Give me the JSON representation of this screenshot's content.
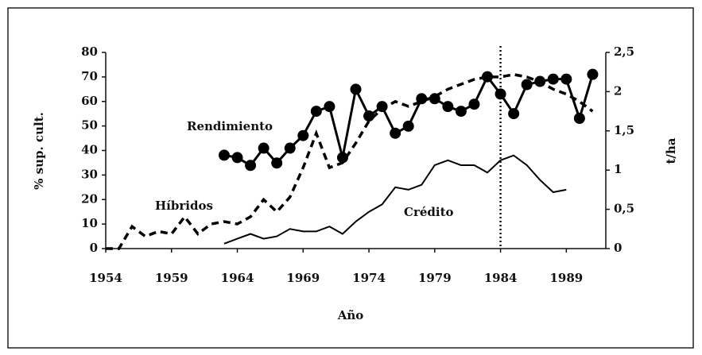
{
  "chart_data": {
    "type": "line",
    "xlabel": "Año",
    "ylabel": "% sup. cult.",
    "y2label": "t/ha",
    "xlim": [
      1954,
      1992
    ],
    "xticks": [
      1954,
      1959,
      1964,
      1969,
      1974,
      1979,
      1984,
      1989
    ],
    "ylim": [
      0,
      80
    ],
    "yticks": [
      0,
      10,
      20,
      30,
      40,
      50,
      60,
      70,
      80
    ],
    "y2lim": [
      0,
      2.5
    ],
    "y2ticks": [
      0,
      {
        "value": 0.5,
        "label": "0,5"
      },
      1,
      {
        "value": 1.5,
        "label": "1,5"
      },
      2,
      {
        "value": 2.5,
        "label": "2,5"
      }
    ],
    "vline": 1984,
    "series": [
      {
        "name": "Híbridos",
        "color": "#000000",
        "style": "dashed",
        "x": [
          1954,
          1955,
          1956,
          1957,
          1958,
          1959,
          1960,
          1961,
          1962,
          1963,
          1964,
          1965,
          1966,
          1967,
          1968,
          1969,
          1970,
          1971,
          1972,
          1973,
          1974,
          1975,
          1976,
          1977,
          1978,
          1979,
          1980,
          1981,
          1982,
          1983,
          1984,
          1985,
          1986,
          1987,
          1988,
          1989,
          1990,
          1991
        ],
        "values": [
          0,
          0,
          9,
          5,
          7,
          6,
          13,
          6,
          10,
          11,
          10,
          13,
          20,
          15,
          21,
          33,
          47,
          33,
          35,
          43,
          52,
          57,
          60,
          58,
          60,
          62,
          65,
          67,
          69,
          70,
          70,
          71,
          70,
          68,
          65,
          63,
          60,
          56
        ]
      },
      {
        "name": "Rendimiento",
        "color": "#000000",
        "style": "solid-markers",
        "axis": "y2",
        "x": [
          1963,
          1964,
          1965,
          1966,
          1967,
          1968,
          1969,
          1970,
          1971,
          1972,
          1973,
          1974,
          1975,
          1976,
          1977,
          1978,
          1979,
          1980,
          1981,
          1982,
          1983,
          1984,
          1985,
          1986,
          1987,
          1988,
          1989,
          1990,
          1991
        ],
        "values": [
          1.19,
          1.16,
          1.06,
          1.28,
          1.09,
          1.28,
          1.44,
          1.75,
          1.81,
          1.16,
          2.03,
          1.69,
          1.81,
          1.47,
          1.56,
          1.91,
          1.91,
          1.81,
          1.75,
          1.84,
          2.19,
          1.97,
          1.72,
          2.09,
          2.13,
          2.16,
          2.16,
          1.66,
          2.22
        ]
      },
      {
        "name": "Crédito",
        "color": "#000000",
        "style": "solid",
        "x": [
          1963,
          1964,
          1965,
          1966,
          1967,
          1968,
          1969,
          1970,
          1971,
          1972,
          1973,
          1974,
          1975,
          1976,
          1977,
          1978,
          1979,
          1980,
          1981,
          1982,
          1983,
          1984,
          1985,
          1986,
          1987,
          1988,
          1989
        ],
        "values": [
          2,
          4,
          6,
          4,
          5,
          8,
          7,
          7,
          9,
          6,
          11,
          15,
          18,
          25,
          24,
          26,
          34,
          36,
          34,
          34,
          31,
          36,
          38,
          34,
          28,
          23,
          24
        ]
      }
    ]
  }
}
